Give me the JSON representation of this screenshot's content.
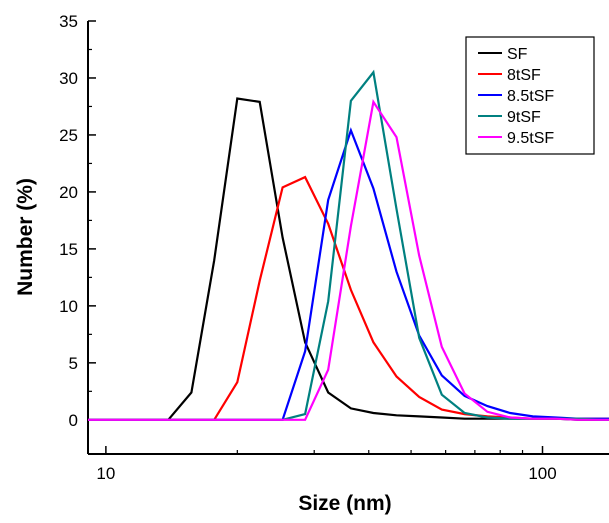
{
  "chart_data": {
    "type": "line",
    "title": "",
    "xlabel": "Size (nm)",
    "ylabel": "Number (%)",
    "x_scale": "log",
    "xlim": [
      9.1,
      142
    ],
    "ylim": [
      -3,
      35
    ],
    "x_major_ticks": [
      10,
      100
    ],
    "x_tick_labels": [
      "10",
      "100"
    ],
    "y_ticks": [
      0,
      5,
      10,
      15,
      20,
      25,
      30,
      35
    ],
    "y_tick_labels": [
      "0",
      "5",
      "10",
      "15",
      "20",
      "25",
      "30",
      "35"
    ],
    "grid": false,
    "legend_position": "top-right",
    "series": [
      {
        "name": "SF",
        "color": "#000000",
        "x": [
          9.1,
          13.9,
          15.7,
          17.7,
          20.0,
          22.5,
          25.4,
          28.6,
          32.3,
          36.4,
          41.0,
          46.3,
          52.2,
          58.8,
          66.3,
          74.8,
          84.3,
          95.0,
          107.1,
          120.8,
          136.1,
          142
        ],
        "y": [
          0,
          0,
          2.4,
          14.0,
          28.2,
          27.9,
          16.0,
          6.8,
          2.4,
          1.0,
          0.6,
          0.4,
          0.3,
          0.2,
          0.1,
          0.1,
          0.1,
          0.1,
          0.1,
          0.0,
          0.0,
          0
        ]
      },
      {
        "name": "8tSF",
        "color": "#ff0000",
        "x": [
          9.1,
          17.7,
          20.0,
          22.5,
          25.4,
          28.6,
          32.3,
          36.4,
          41.0,
          46.3,
          52.2,
          58.8,
          66.3,
          74.8,
          84.3,
          95.0,
          107.1,
          120.8,
          136.1,
          142
        ],
        "y": [
          0,
          0,
          3.3,
          12.2,
          20.4,
          21.3,
          17.2,
          11.4,
          6.8,
          3.8,
          2.0,
          0.9,
          0.5,
          0.3,
          0.2,
          0.1,
          0.1,
          0.1,
          0.1,
          0.1
        ]
      },
      {
        "name": "8.5tSF",
        "color": "#0000ff",
        "x": [
          9.1,
          25.4,
          28.6,
          32.3,
          36.4,
          41.0,
          46.3,
          52.2,
          58.8,
          66.3,
          74.8,
          84.3,
          95.0,
          107.1,
          120.8,
          136.1,
          142
        ],
        "y": [
          0,
          0,
          6.0,
          19.3,
          25.4,
          20.3,
          13.0,
          7.4,
          3.9,
          2.1,
          1.2,
          0.6,
          0.3,
          0.2,
          0.1,
          0.1,
          0.1
        ]
      },
      {
        "name": "9tSF",
        "color": "#008080",
        "x": [
          9.1,
          25.4,
          28.6,
          32.3,
          36.4,
          41.0,
          46.3,
          52.2,
          58.8,
          66.3,
          74.8,
          84.3,
          95.0,
          107.1,
          120.8,
          136.1,
          142
        ],
        "y": [
          0,
          0,
          0.5,
          10.4,
          28.0,
          30.5,
          18.5,
          7.2,
          2.2,
          0.6,
          0.2,
          0.1,
          0.1,
          0.1,
          0.1,
          0.0,
          0.0
        ]
      },
      {
        "name": "9.5tSF",
        "color": "#ff00ff",
        "x": [
          9.1,
          25.4,
          28.6,
          32.3,
          36.4,
          41.0,
          46.3,
          52.2,
          58.8,
          66.3,
          74.8,
          84.3,
          95.0,
          107.1,
          120.8,
          136.1,
          142
        ],
        "y": [
          0,
          0,
          0,
          4.4,
          17.0,
          27.9,
          24.8,
          14.4,
          6.4,
          2.3,
          0.7,
          0.2,
          0.1,
          0.1,
          0.0,
          0.0,
          0.0
        ]
      }
    ]
  }
}
